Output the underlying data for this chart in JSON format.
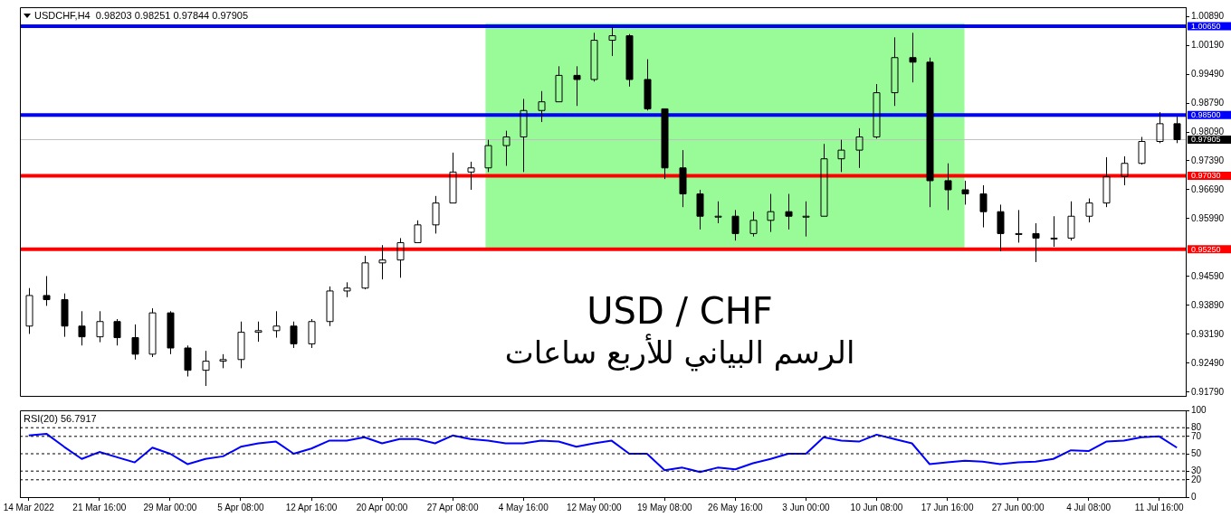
{
  "chart_data": [
    {
      "type": "candlestick",
      "title": "USDCHF,H4  0.98203 0.98251 0.97844 0.97905",
      "color": "#000000",
      "legend": false,
      "tick_labels": "y",
      "annotations": [
        "USD / CHF",
        "الرسم البياني للأربع ساعات"
      ],
      "categories": [
        null,
        null,
        null,
        null,
        null,
        null,
        null,
        null,
        null,
        null,
        null,
        null,
        null,
        null,
        null,
        null,
        null,
        null,
        null,
        null,
        null,
        null,
        null,
        null,
        null,
        null,
        null,
        null,
        null,
        null,
        null,
        null,
        null,
        null,
        null,
        null,
        null,
        null,
        null,
        null,
        null,
        null,
        null,
        null,
        null,
        null,
        null,
        null,
        null,
        null,
        null,
        null,
        null,
        null,
        null,
        null,
        null,
        null,
        null,
        null,
        null,
        null,
        null,
        null,
        null,
        null
      ],
      "ohlc": [
        [
          0.9339,
          0.9431,
          0.932,
          0.9413
        ],
        [
          0.9413,
          0.946,
          0.9388,
          0.9403
        ],
        [
          0.9403,
          0.9418,
          0.9313,
          0.9339
        ],
        [
          0.9339,
          0.9375,
          0.9292,
          0.9313
        ],
        [
          0.9313,
          0.9375,
          0.93,
          0.935
        ],
        [
          0.935,
          0.9356,
          0.9292,
          0.9311
        ],
        [
          0.9311,
          0.9343,
          0.9258,
          0.9271
        ],
        [
          0.9271,
          0.9382,
          0.9264,
          0.9371
        ],
        [
          0.9371,
          0.9375,
          0.9271,
          0.9286
        ],
        [
          0.9286,
          0.9292,
          0.9217,
          0.9232
        ],
        [
          0.9232,
          0.9279,
          0.9194,
          0.9254
        ],
        [
          0.9254,
          0.9271,
          0.9237,
          0.9258
        ],
        [
          0.9258,
          0.935,
          0.9237,
          0.9324
        ],
        [
          0.9324,
          0.935,
          0.9301,
          0.9328
        ],
        [
          0.9328,
          0.9375,
          0.9311,
          0.9339
        ],
        [
          0.9339,
          0.935,
          0.9286,
          0.9296
        ],
        [
          0.9296,
          0.9356,
          0.9286,
          0.935
        ],
        [
          0.935,
          0.9435,
          0.9339,
          0.9424
        ],
        [
          0.9424,
          0.9445,
          0.9409,
          0.9431
        ],
        [
          0.9431,
          0.9509,
          0.9428,
          0.9492
        ],
        [
          0.9492,
          0.9535,
          0.9452,
          0.9499
        ],
        [
          0.9499,
          0.9552,
          0.9456,
          0.9541
        ],
        [
          0.9541,
          0.9595,
          0.9541,
          0.9584
        ],
        [
          0.9584,
          0.9654,
          0.9563,
          0.9637
        ],
        [
          0.9637,
          0.9759,
          0.9637,
          0.9712
        ],
        [
          0.9712,
          0.9737,
          0.9669,
          0.9722
        ],
        [
          0.9722,
          0.979,
          0.9712,
          0.9776
        ],
        [
          0.9776,
          0.9812,
          0.9727,
          0.9797
        ],
        [
          0.9797,
          0.9889,
          0.9712,
          0.9861
        ],
        [
          0.9861,
          0.9908,
          0.9833,
          0.9882
        ],
        [
          0.9882,
          0.9968,
          0.9882,
          0.9946
        ],
        [
          0.9946,
          0.9968,
          0.9872,
          0.9936
        ],
        [
          0.9936,
          1.0049,
          0.9931,
          1.0031
        ],
        [
          1.0031,
          1.0063,
          0.9993,
          1.0042
        ],
        [
          1.0042,
          1.0046,
          0.9919,
          0.9936
        ],
        [
          0.9936,
          0.9985,
          0.9861,
          0.9865
        ],
        [
          0.9865,
          0.9865,
          0.9695,
          0.9722
        ],
        [
          0.9722,
          0.9765,
          0.9627,
          0.9659
        ],
        [
          0.9659,
          0.9669,
          0.9573,
          0.9605
        ],
        [
          0.9605,
          0.9641,
          0.9588,
          0.9605
        ],
        [
          0.9605,
          0.962,
          0.9546,
          0.9563
        ],
        [
          0.9563,
          0.9616,
          0.9556,
          0.9595
        ],
        [
          0.9595,
          0.9659,
          0.9567,
          0.9616
        ],
        [
          0.9616,
          0.9659,
          0.9573,
          0.9605
        ],
        [
          0.9605,
          0.9641,
          0.9556,
          0.9605
        ],
        [
          0.9605,
          0.978,
          0.9605,
          0.9744
        ],
        [
          0.9744,
          0.979,
          0.9712,
          0.9765
        ],
        [
          0.9765,
          0.9818,
          0.9722,
          0.9797
        ],
        [
          0.9797,
          0.9925,
          0.9793,
          0.9904
        ],
        [
          0.9904,
          1.0038,
          0.9872,
          0.9989
        ],
        [
          0.9989,
          1.0049,
          0.9929,
          0.9978
        ],
        [
          0.9978,
          0.9989,
          0.9627,
          0.9691
        ],
        [
          0.9691,
          0.9733,
          0.962,
          0.9669
        ],
        [
          0.9669,
          0.9691,
          0.9633,
          0.9659
        ],
        [
          0.9659,
          0.968,
          0.9578,
          0.9616
        ],
        [
          0.9616,
          0.9633,
          0.952,
          0.9563
        ],
        [
          0.9563,
          0.962,
          0.9541,
          0.9563
        ],
        [
          0.9563,
          0.9588,
          0.9494,
          0.9552
        ],
        [
          0.9552,
          0.9605,
          0.9531,
          0.9552
        ],
        [
          0.9552,
          0.9641,
          0.9546,
          0.9605
        ],
        [
          0.9605,
          0.9648,
          0.959,
          0.9637
        ],
        [
          0.9637,
          0.9748,
          0.9627,
          0.9701
        ],
        [
          0.9701,
          0.975,
          0.968,
          0.9733
        ],
        [
          0.9733,
          0.9797,
          0.973,
          0.9786
        ],
        [
          0.9786,
          0.9857,
          0.9782,
          0.9829
        ],
        [
          0.9829,
          0.9846,
          0.9782,
          0.97905
        ]
      ],
      "ylim": [
        0.917,
        1.0111
      ],
      "yticks": [
        {
          "value": 0.9179,
          "label": "0.91790"
        },
        {
          "value": 0.9249,
          "label": "0.92490"
        },
        {
          "value": 0.9319,
          "label": "0.93190"
        },
        {
          "value": 0.9389,
          "label": "0.93890"
        },
        {
          "value": 0.9459,
          "label": "0.94590"
        },
        {
          "value": 0.9599,
          "label": "0.95990"
        },
        {
          "value": 0.9669,
          "label": "0.96690"
        },
        {
          "value": 0.9739,
          "label": "0.97390"
        },
        {
          "value": 0.9809,
          "label": "0.98090"
        },
        {
          "value": 0.9879,
          "label": "0.98790"
        },
        {
          "value": 0.9949,
          "label": "0.99490"
        },
        {
          "value": 1.0019,
          "label": "1.00190"
        },
        {
          "value": 1.0089,
          "label": "1.00890"
        }
      ],
      "bands": [
        {
          "axis": "y",
          "from": 0.9525,
          "to": 1.0072,
          "color": "#98fb98"
        }
      ],
      "ref_lines": [
        {
          "axis": "y",
          "value": 1.0065,
          "label": "1.00650",
          "color": "#0000ff"
        },
        {
          "axis": "y",
          "value": 0.985,
          "label": "0.98500",
          "color": "#0000ff"
        },
        {
          "axis": "y",
          "value": 0.97905,
          "label": "0.97905",
          "color": "#c0c0c0"
        },
        {
          "axis": "y",
          "value": 0.9703,
          "label": "0.97030",
          "color": "#ff0000"
        },
        {
          "axis": "y",
          "value": 0.9525,
          "label": "0.95250",
          "color": "#ff0000"
        }
      ]
    },
    {
      "type": "line",
      "title": "RSI(20) 56.7917",
      "legend": false,
      "marker": "none",
      "categories": [
        "14 Mar 2022",
        null,
        null,
        null,
        "21 Mar 16:00",
        null,
        null,
        null,
        "29 Mar 00:00",
        null,
        null,
        null,
        "5 Apr 08:00",
        null,
        null,
        null,
        "12 Apr 16:00",
        null,
        null,
        null,
        "20 Apr 00:00",
        null,
        null,
        null,
        "27 Apr 08:00",
        null,
        null,
        null,
        "4 May 16:00",
        null,
        null,
        null,
        "12 May 00:00",
        null,
        null,
        null,
        "19 May 08:00",
        null,
        null,
        null,
        "26 May 16:00",
        null,
        null,
        null,
        "3 Jun 00:00",
        null,
        null,
        null,
        "10 Jun 08:00",
        null,
        null,
        null,
        "17 Jun 16:00",
        null,
        null,
        null,
        "27 Jun 00:00",
        null,
        null,
        null,
        "4 Jul 08:00",
        null,
        null,
        null,
        "11 Jul 16:00",
        null
      ],
      "series": [
        {
          "color": "#0000ff",
          "values": [
            71,
            73,
            58,
            44,
            52,
            46,
            40,
            57,
            50,
            38,
            44,
            47,
            58,
            62,
            64,
            50,
            56,
            65,
            65,
            69,
            62,
            67,
            67,
            62,
            71,
            67,
            65,
            62,
            62,
            65,
            64,
            58,
            62,
            65,
            50,
            50,
            31,
            34,
            29,
            34,
            32,
            39,
            44,
            50,
            50,
            69,
            65,
            64,
            72,
            67,
            62,
            38,
            40,
            42,
            41,
            38,
            40,
            41,
            44,
            54,
            53,
            64,
            65,
            69,
            70,
            57
          ]
        }
      ],
      "ylim": [
        0,
        100
      ],
      "yticks": [
        0,
        20,
        30,
        50,
        70,
        80,
        100
      ],
      "ref_lines": [
        {
          "axis": "y",
          "value": 80,
          "line_style": "dashed",
          "color": "#000000"
        },
        {
          "axis": "y",
          "value": 70,
          "line_style": "dashed",
          "color": "#000000"
        },
        {
          "axis": "y",
          "value": 50,
          "line_style": "dashed",
          "color": "#000000"
        },
        {
          "axis": "y",
          "value": 30,
          "line_style": "dashed",
          "color": "#000000"
        },
        {
          "axis": "y",
          "value": 20,
          "line_style": "dashed",
          "color": "#000000"
        }
      ]
    }
  ]
}
